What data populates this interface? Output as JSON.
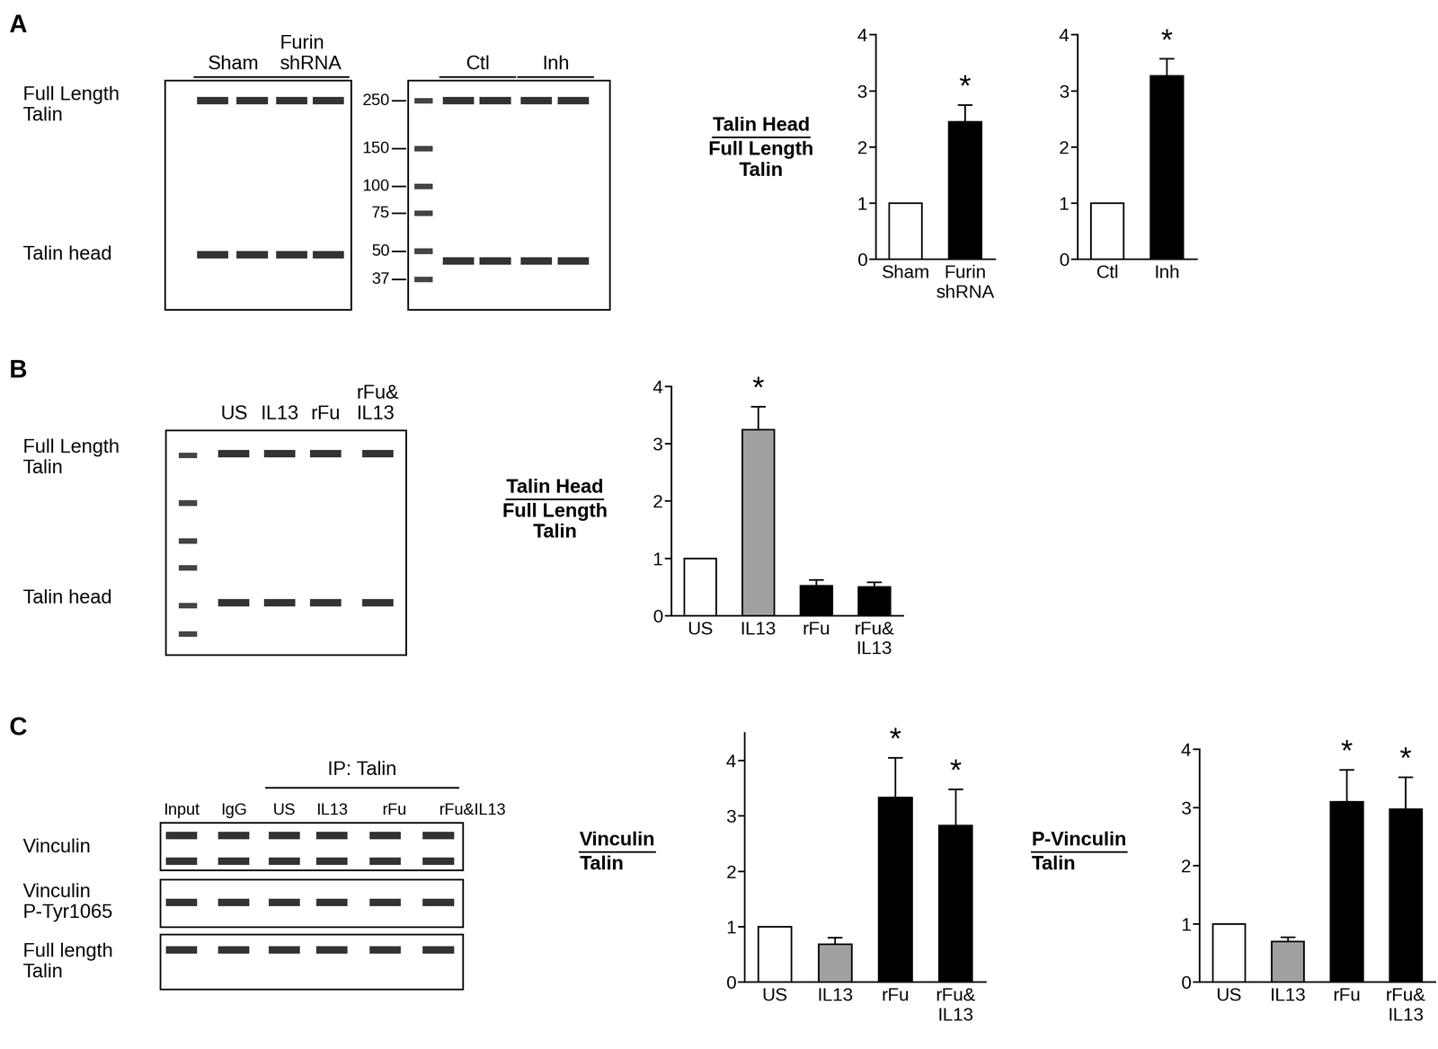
{
  "panel_labels": [
    "A",
    "B",
    "C"
  ],
  "blots": [
    {
      "row_labels": [
        "Full Length\nTalin",
        "Talin head"
      ],
      "groups": [
        {
          "text": "Sham",
          "lanes": [
            0,
            1
          ]
        },
        {
          "text": "Furin\nshRNA",
          "lanes": [
            2,
            3
          ]
        }
      ],
      "markers": [
        250,
        150,
        100,
        75,
        50,
        37
      ]
    },
    {
      "groups": [
        {
          "text": "Ctl",
          "lanes": [
            0,
            1
          ]
        },
        {
          "text": "Inh",
          "lanes": [
            2,
            3
          ]
        }
      ]
    },
    {
      "row_labels": [
        "Full Length\nTalin",
        "Talin head"
      ],
      "lane_labels": [
        "US",
        "IL13",
        "rFu",
        "rFu&\nIL13"
      ]
    },
    {
      "row_labels": [
        "Vinculin",
        "Vinculin\nP-Tyr1065",
        "Full length\nTalin"
      ],
      "lane_labels": [
        "Input",
        "IgG",
        "US",
        "IL13",
        "rFu",
        "rFu&IL13"
      ],
      "groups": [
        {
          "text": "IP: Talin",
          "lanes": [
            2,
            5
          ]
        }
      ]
    }
  ],
  "chart_data": [
    {
      "type": "bar",
      "y_label": {
        "numerator": "Talin Head",
        "denominator": "Full Length\nTalin"
      },
      "categories": [
        "Sham",
        "Furin\nshRNA"
      ],
      "values": [
        1,
        2.45
      ],
      "errors": [
        null,
        0.3
      ],
      "colors": [
        "#ffffff",
        "#000000"
      ],
      "ylim": [
        0,
        4
      ],
      "yticks": [
        0,
        1,
        2,
        3,
        4
      ],
      "annotations": [
        {
          "category": "Furin\nshRNA",
          "text": "*"
        }
      ]
    },
    {
      "type": "bar",
      "categories": [
        "Ctl",
        "Inh"
      ],
      "values": [
        1,
        3.27
      ],
      "errors": [
        null,
        0.3
      ],
      "colors": [
        "#ffffff",
        "#000000"
      ],
      "ylim": [
        0,
        4
      ],
      "yticks": [
        0,
        1,
        2,
        3,
        4
      ],
      "annotations": [
        {
          "category": "Inh",
          "text": "*"
        }
      ]
    },
    {
      "type": "bar",
      "y_label": {
        "numerator": "Talin Head",
        "denominator": "Full Length\nTalin"
      },
      "categories": [
        "US",
        "IL13",
        "rFu",
        "rFu&\nIL13"
      ],
      "values": [
        1,
        3.25,
        0.52,
        0.5
      ],
      "errors": [
        null,
        0.4,
        0.1,
        0.08
      ],
      "colors": [
        "#ffffff",
        "#a0a0a0",
        "#000000",
        "#000000"
      ],
      "ylim": [
        0,
        4
      ],
      "yticks": [
        0,
        1,
        2,
        3,
        4
      ],
      "annotations": [
        {
          "category": "IL13",
          "text": "*"
        }
      ]
    },
    {
      "type": "bar",
      "y_label": {
        "numerator": "Vinculin",
        "denominator": "Talin"
      },
      "categories": [
        "US",
        "IL13",
        "rFu",
        "rFu&\nIL13"
      ],
      "values": [
        1,
        0.68,
        3.33,
        2.83
      ],
      "errors": [
        null,
        0.12,
        0.72,
        0.65
      ],
      "colors": [
        "#ffffff",
        "#a0a0a0",
        "#000000",
        "#000000"
      ],
      "ylim": [
        0,
        4.5
      ],
      "yticks": [
        0,
        1,
        2,
        3,
        4
      ],
      "annotations": [
        {
          "category": "rFu",
          "text": "*"
        },
        {
          "category": "rFu&\nIL13",
          "text": "*"
        }
      ]
    },
    {
      "type": "bar",
      "y_label": {
        "numerator": "P-Vinculin",
        "denominator": "Talin"
      },
      "categories": [
        "US",
        "IL13",
        "rFu",
        "rFu&\nIL13"
      ],
      "values": [
        1,
        0.7,
        3.1,
        2.97
      ],
      "errors": [
        null,
        0.07,
        0.55,
        0.55
      ],
      "colors": [
        "#ffffff",
        "#a0a0a0",
        "#000000",
        "#000000"
      ],
      "ylim": [
        0,
        4
      ],
      "yticks": [
        0,
        1,
        2,
        3,
        4
      ],
      "annotations": [
        {
          "category": "rFu",
          "text": "*"
        },
        {
          "category": "rFu&\nIL13",
          "text": "*"
        }
      ]
    }
  ]
}
